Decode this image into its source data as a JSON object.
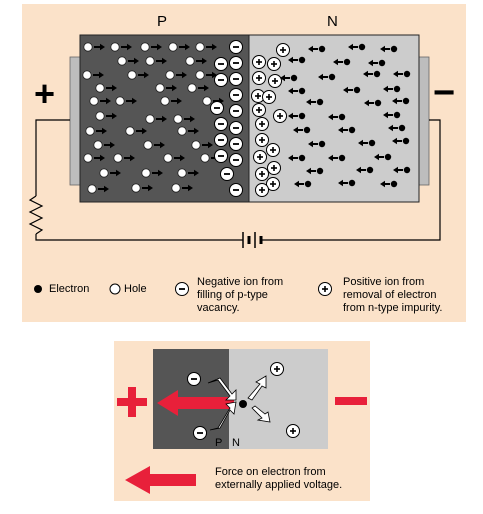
{
  "main_diagram": {
    "region_p_label": "P",
    "region_n_label": "N",
    "plus_terminal": "+",
    "minus_terminal": "−"
  },
  "legend": {
    "electron": "Electron",
    "hole": "Hole",
    "negative_ion": [
      "Negative ion from",
      "filling of p-type",
      "vacancy."
    ],
    "positive_ion": [
      "Positive ion from",
      "removal of electron",
      "from n-type impurity."
    ]
  },
  "detail_diagram": {
    "p_label": "P",
    "n_label": "N",
    "plus_sign": "+",
    "minus_sign": "−",
    "force_caption": [
      "Force on electron from",
      "externally applied voltage."
    ]
  },
  "colors": {
    "panel_bg": "#fbe2c9",
    "p_region": "#555555",
    "n_region": "#cccccc",
    "force_arrow": "#e8203a"
  }
}
